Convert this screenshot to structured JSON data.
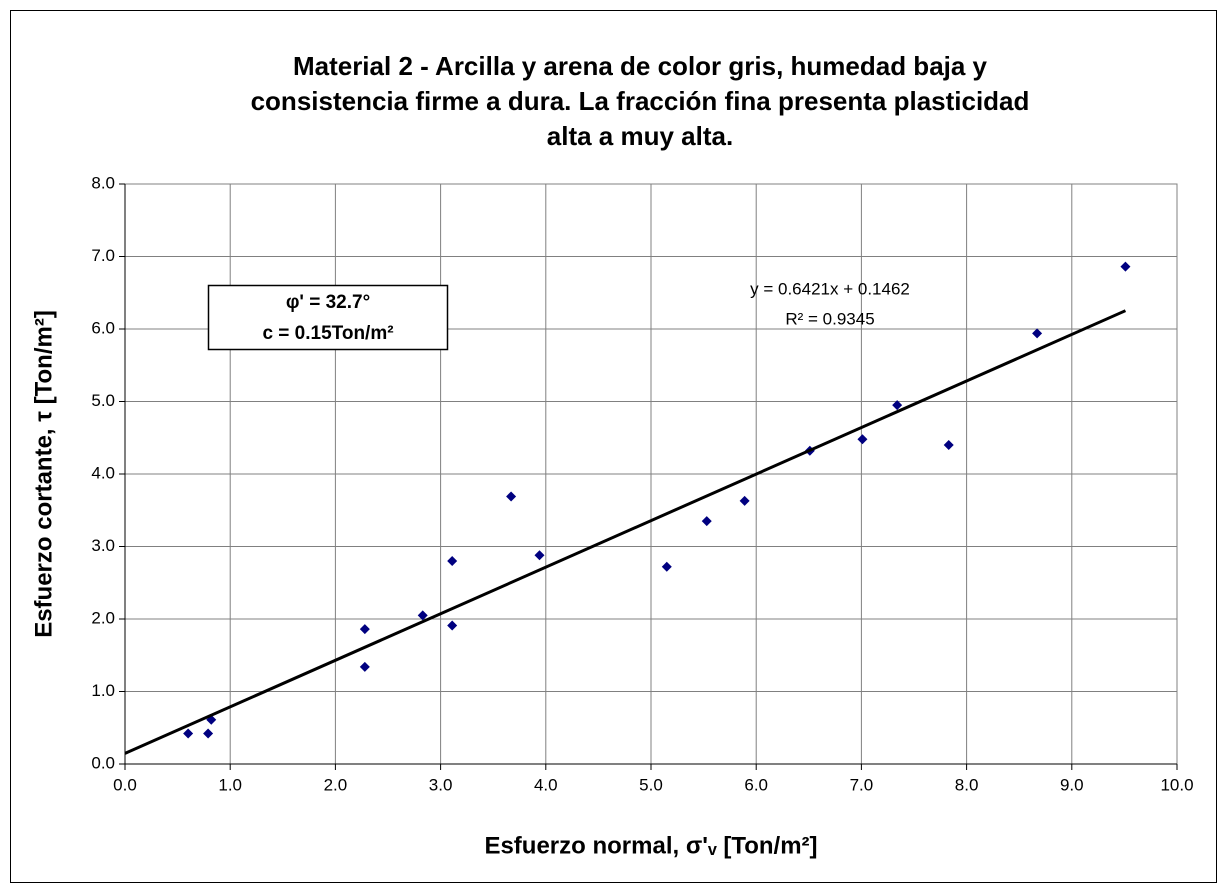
{
  "chart_data": {
    "type": "scatter",
    "title": [
      "Material 2 - Arcilla y arena de color gris, humedad baja y",
      "consistencia firme a dura.  La fracción fina presenta plasticidad",
      "alta a muy alta."
    ],
    "x_label": "Esfuerzo normal, σ'ᵥ [Ton/m²]",
    "y_label": "Esfuerzo cortante,  τ  [Ton/m²]",
    "annotations": [
      "φ' = 32.7°",
      "c = 0.15Ton/m²"
    ],
    "series": [
      {
        "name": "Material 2",
        "color": "#000080",
        "x": [
          0.6,
          0.79,
          0.82,
          2.28,
          2.28,
          2.83,
          3.11,
          3.11,
          3.67,
          3.94,
          5.15,
          5.53,
          5.89,
          6.51,
          7.01,
          7.34,
          7.83,
          8.67,
          9.51
        ],
        "values": [
          0.42,
          0.42,
          0.61,
          1.86,
          1.34,
          2.05,
          2.8,
          1.91,
          3.69,
          2.88,
          2.72,
          3.35,
          3.63,
          4.32,
          4.48,
          4.95,
          4.4,
          5.94,
          6.86
        ]
      }
    ],
    "trendline": {
      "slope": 0.6421,
      "intercept": 0.1462,
      "color": "#000000",
      "equation": "y = 0.6421x + 0.1462",
      "r2_label": "R² = 0.9345"
    },
    "xlim": [
      0,
      10
    ],
    "xticks": [
      {
        "value": 0,
        "label": "0.0"
      },
      {
        "value": 1,
        "label": "1.0"
      },
      {
        "value": 2,
        "label": "2.0"
      },
      {
        "value": 3,
        "label": "3.0"
      },
      {
        "value": 4,
        "label": "4.0"
      },
      {
        "value": 5,
        "label": "5.0"
      },
      {
        "value": 6,
        "label": "6.0"
      },
      {
        "value": 7,
        "label": "7.0"
      },
      {
        "value": 8,
        "label": "8.0"
      },
      {
        "value": 9,
        "label": "9.0"
      },
      {
        "value": 10,
        "label": "10.0"
      }
    ],
    "ylim": [
      0,
      8
    ],
    "yticks": [
      {
        "value": 0,
        "label": "0.0"
      },
      {
        "value": 1,
        "label": "1.0"
      },
      {
        "value": 2,
        "label": "2.0"
      },
      {
        "value": 3,
        "label": "3.0"
      },
      {
        "value": 4,
        "label": "4.0"
      },
      {
        "value": 5,
        "label": "5.0"
      },
      {
        "value": 6,
        "label": "6.0"
      },
      {
        "value": 7,
        "label": "7.0"
      },
      {
        "value": 8,
        "label": "8.0"
      }
    ],
    "grid": true
  }
}
